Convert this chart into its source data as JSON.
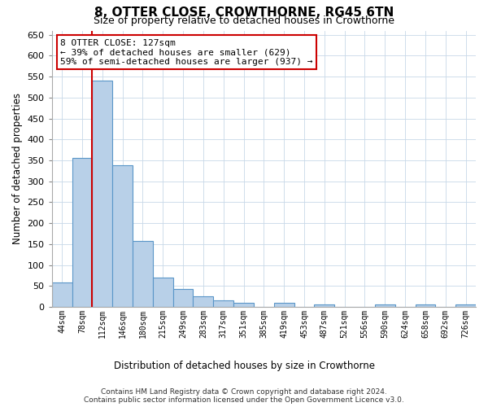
{
  "title": "8, OTTER CLOSE, CROWTHORNE, RG45 6TN",
  "subtitle": "Size of property relative to detached houses in Crowthorne",
  "xlabel_bottom": "Distribution of detached houses by size in Crowthorne",
  "ylabel": "Number of detached properties",
  "footnote1": "Contains HM Land Registry data © Crown copyright and database right 2024.",
  "footnote2": "Contains public sector information licensed under the Open Government Licence v3.0.",
  "bar_labels": [
    "44sqm",
    "78sqm",
    "112sqm",
    "146sqm",
    "180sqm",
    "215sqm",
    "249sqm",
    "283sqm",
    "317sqm",
    "351sqm",
    "385sqm",
    "419sqm",
    "453sqm",
    "487sqm",
    "521sqm",
    "556sqm",
    "590sqm",
    "624sqm",
    "658sqm",
    "692sqm",
    "726sqm"
  ],
  "bar_values": [
    58,
    355,
    540,
    338,
    157,
    70,
    42,
    25,
    15,
    10,
    0,
    10,
    0,
    5,
    0,
    0,
    5,
    0,
    5,
    0,
    5
  ],
  "bar_color": "#b8d0e8",
  "bar_edge_color": "#5a96c8",
  "ylim": [
    0,
    660
  ],
  "yticks": [
    0,
    50,
    100,
    150,
    200,
    250,
    300,
    350,
    400,
    450,
    500,
    550,
    600,
    650
  ],
  "property_bin_index": 2,
  "vline_x": 1.5,
  "annotation_title": "8 OTTER CLOSE: 127sqm",
  "annotation_line1": "← 39% of detached houses are smaller (629)",
  "annotation_line2": "59% of semi-detached houses are larger (937) →",
  "vline_color": "#cc0000",
  "annotation_box_color": "#ffffff",
  "annotation_box_edge_color": "#cc0000",
  "background_color": "#ffffff",
  "grid_color": "#c8d8e8"
}
